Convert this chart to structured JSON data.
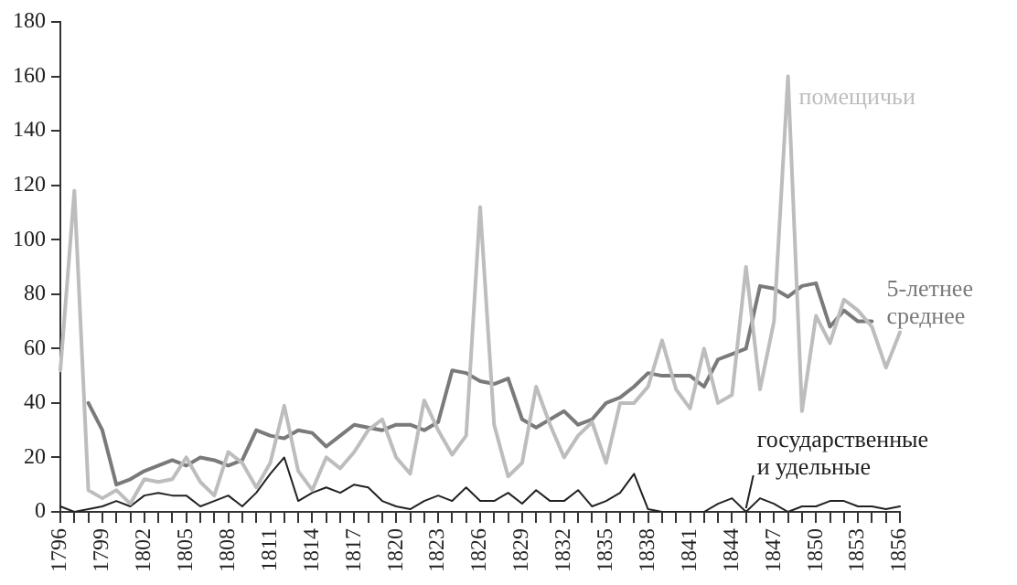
{
  "chart_data": {
    "type": "line",
    "categories": [
      "1796",
      null,
      null,
      "1799",
      null,
      null,
      "1802",
      null,
      null,
      "1805",
      null,
      null,
      "1808",
      null,
      null,
      "1811",
      null,
      null,
      "1814",
      null,
      null,
      "1817",
      null,
      null,
      "1820",
      null,
      null,
      "1823",
      null,
      null,
      "1826",
      null,
      null,
      "1829",
      null,
      null,
      "1832",
      null,
      null,
      "1835",
      null,
      null,
      "1838",
      null,
      null,
      "1841",
      null,
      null,
      "1844",
      null,
      null,
      "1847",
      null,
      null,
      "1850",
      null,
      null,
      "1853",
      null,
      null,
      "1856"
    ],
    "series": [
      {
        "name": "помещичьи",
        "color": "#bdbdbd",
        "values": [
          52,
          118,
          8,
          5,
          8,
          3,
          12,
          11,
          12,
          20,
          11,
          6,
          22,
          18,
          9,
          18,
          39,
          15,
          8,
          20,
          16,
          22,
          30,
          34,
          20,
          14,
          41,
          30,
          21,
          28,
          112,
          32,
          13,
          18,
          46,
          32,
          20,
          28,
          33,
          18,
          40,
          40,
          46,
          63,
          45,
          38,
          60,
          40,
          43,
          90,
          45,
          70,
          160,
          37,
          72,
          62,
          78,
          74,
          68,
          53,
          66
        ]
      },
      {
        "name": "5-летнее среднее",
        "color": "#7a7a7a",
        "values": [
          null,
          null,
          40,
          30,
          10,
          12,
          15,
          17,
          19,
          17,
          20,
          19,
          17,
          19,
          30,
          28,
          27,
          30,
          29,
          24,
          28,
          32,
          31,
          30,
          32,
          32,
          30,
          33,
          52,
          51,
          48,
          47,
          49,
          34,
          31,
          34,
          37,
          32,
          34,
          40,
          42,
          46,
          51,
          50,
          50,
          50,
          46,
          56,
          58,
          60,
          83,
          82,
          79,
          83,
          84,
          68,
          74,
          70,
          70,
          null,
          null
        ]
      },
      {
        "name": "государственные и удельные",
        "color": "#222222",
        "values": [
          2,
          0,
          1,
          2,
          4,
          2,
          6,
          7,
          6,
          6,
          2,
          4,
          6,
          2,
          7,
          14,
          20,
          4,
          7,
          9,
          7,
          10,
          9,
          4,
          2,
          1,
          4,
          6,
          4,
          9,
          4,
          4,
          7,
          3,
          8,
          4,
          4,
          8,
          2,
          4,
          7,
          14,
          1,
          0,
          0,
          0,
          0,
          3,
          5,
          0,
          5,
          3,
          0,
          2,
          2,
          4,
          4,
          2,
          2,
          1,
          2
        ]
      }
    ],
    "ylim": [
      0,
      180
    ],
    "yticks": [
      0,
      20,
      40,
      60,
      80,
      100,
      120,
      140,
      160,
      180
    ],
    "grid": false,
    "legend": false,
    "marker": "none",
    "line_style": "solid"
  }
}
